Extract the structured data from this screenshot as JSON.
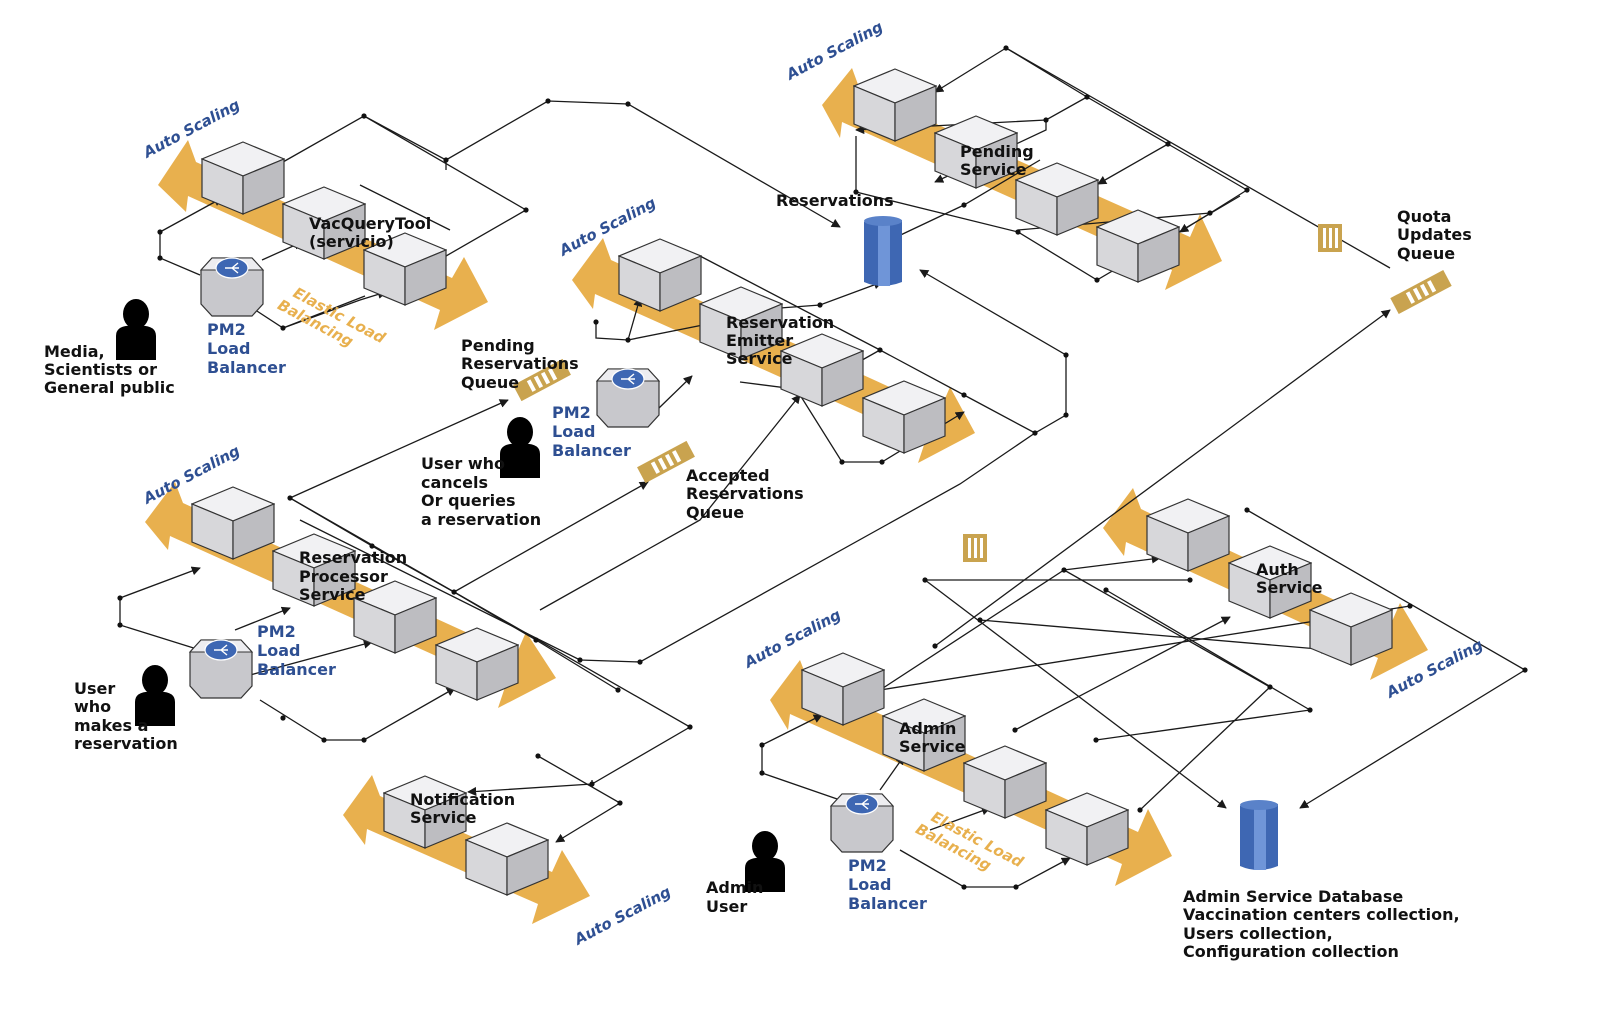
{
  "colors": {
    "band": "#e8b04e",
    "brand_blue": "#2e4f92",
    "db_blue": "#3e67b3",
    "queue_gold": "#c9a34f",
    "wire": "#1a1a1a"
  },
  "groups": {
    "query": {
      "auto_scaling": "Auto Scaling",
      "service": [
        "VacQueryTool",
        "(servicio)"
      ],
      "elb": [
        "Elastic Load",
        "Balancing"
      ],
      "lb": [
        "PM2",
        "Load",
        "Balancer"
      ],
      "user": [
        "Media,",
        "Scientists or",
        "General public"
      ]
    },
    "emitter": {
      "auto_scaling": "Auto Scaling",
      "service": [
        "Reservation",
        "Emitter",
        "Service"
      ],
      "lb": [
        "PM2",
        "Load",
        "Balancer"
      ],
      "user": [
        "User who",
        "cancels",
        "Or queries",
        "a reservation"
      ]
    },
    "pending": {
      "auto_scaling": "Auto Scaling",
      "service": [
        "Pending",
        "Service"
      ]
    },
    "processor": {
      "auto_scaling": "Auto Scaling",
      "service": [
        "Reservation",
        "Processor",
        "Service"
      ],
      "lb": [
        "PM2",
        "Load",
        "Balancer"
      ],
      "user": [
        "User",
        "who",
        "makes a",
        "reservation"
      ]
    },
    "notification": {
      "auto_scaling": "Auto Scaling",
      "service": [
        "Notification",
        "Service"
      ]
    },
    "admin": {
      "auto_scaling": "Auto Scaling",
      "service": [
        "Admin",
        "Service"
      ],
      "elb": [
        "Elastic Load",
        "Balancing"
      ],
      "lb": [
        "PM2",
        "Load",
        "Balancer"
      ],
      "user": [
        "Admin",
        "User"
      ]
    },
    "auth": {
      "auto_scaling": "Auto Scaling",
      "service": [
        "Auth",
        "Service"
      ]
    }
  },
  "queues": {
    "pending": [
      "Pending",
      "Reservations",
      "Queue"
    ],
    "accepted": [
      "Accepted",
      "Reservations",
      "Queue"
    ],
    "quota": [
      "Quota",
      "Updates",
      "Queue"
    ]
  },
  "databases": {
    "reservations": "Reservations",
    "admin": [
      "Admin Service Database",
      "Vaccination centers collection,",
      "Users collection,",
      "Configuration collection"
    ]
  }
}
